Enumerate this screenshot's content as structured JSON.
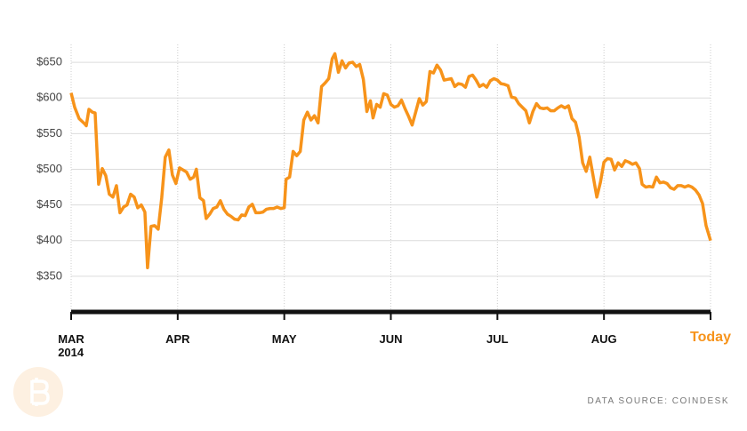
{
  "chart_data": {
    "type": "line",
    "source": "DATA SOURCE: COINDESK",
    "x": [
      0,
      0.033,
      0.075,
      0.125,
      0.142,
      0.167,
      0.2,
      0.225,
      0.258,
      0.292,
      0.325,
      0.358,
      0.392,
      0.425,
      0.458,
      0.492,
      0.525,
      0.558,
      0.592,
      0.625,
      0.658,
      0.692,
      0.717,
      0.75,
      0.783,
      0.817,
      0.85,
      0.883,
      0.917,
      0.95,
      0.983,
      1.017,
      1.05,
      1.083,
      1.117,
      1.15,
      1.175,
      1.208,
      1.242,
      1.267,
      1.3,
      1.333,
      1.367,
      1.4,
      1.433,
      1.467,
      1.5,
      1.533,
      1.567,
      1.6,
      1.633,
      1.667,
      1.7,
      1.733,
      1.767,
      1.8,
      1.833,
      1.867,
      1.9,
      1.933,
      1.967,
      2,
      2.017,
      2.05,
      2.083,
      2.117,
      2.15,
      2.183,
      2.217,
      2.25,
      2.283,
      2.317,
      2.35,
      2.383,
      2.417,
      2.45,
      2.475,
      2.508,
      2.542,
      2.575,
      2.608,
      2.642,
      2.675,
      2.708,
      2.742,
      2.775,
      2.808,
      2.833,
      2.867,
      2.9,
      2.933,
      2.967,
      3,
      3.033,
      3.067,
      3.1,
      3.133,
      3.167,
      3.2,
      3.233,
      3.267,
      3.3,
      3.333,
      3.367,
      3.4,
      3.433,
      3.467,
      3.5,
      3.533,
      3.567,
      3.6,
      3.633,
      3.667,
      3.7,
      3.733,
      3.767,
      3.8,
      3.833,
      3.867,
      3.9,
      3.933,
      3.967,
      4,
      4.033,
      4.067,
      4.1,
      4.133,
      4.167,
      4.2,
      4.233,
      4.267,
      4.3,
      4.333,
      4.367,
      4.4,
      4.433,
      4.467,
      4.5,
      4.533,
      4.567,
      4.6,
      4.633,
      4.667,
      4.7,
      4.733,
      4.767,
      4.8,
      4.833,
      4.867,
      4.9,
      4.933,
      4.967,
      5,
      5.033,
      5.067,
      5.1,
      5.133,
      5.167,
      5.2,
      5.233,
      5.267,
      5.3,
      5.333,
      5.358,
      5.392,
      5.425,
      5.458,
      5.492,
      5.525,
      5.558,
      5.592,
      5.625,
      5.658,
      5.692,
      5.725,
      5.758,
      5.792,
      5.825,
      5.858,
      5.892,
      5.925,
      5.958,
      6
    ],
    "series": [
      {
        "color": "#f7931a",
        "values": [
          607,
          587,
          571,
          564,
          561,
          584,
          580,
          579,
          479,
          501,
          491,
          465,
          461,
          477,
          439,
          447,
          450,
          465,
          461,
          446,
          450,
          440,
          362,
          420,
          421,
          416,
          460,
          517,
          527,
          492,
          480,
          502,
          499,
          496,
          486,
          489,
          500,
          460,
          456,
          431,
          437,
          445,
          447,
          456,
          444,
          437,
          434,
          430,
          429,
          436,
          435,
          447,
          451,
          439,
          439,
          440,
          444,
          445,
          445,
          447,
          445,
          446,
          486,
          489,
          525,
          519,
          525,
          569,
          580,
          569,
          575,
          565,
          616,
          621,
          627,
          655,
          662,
          636,
          652,
          642,
          649,
          650,
          644,
          647,
          626,
          581,
          596,
          572,
          591,
          587,
          606,
          604,
          591,
          587,
          589,
          597,
          585,
          574,
          562,
          580,
          599,
          590,
          595,
          637,
          635,
          646,
          639,
          625,
          626,
          627,
          616,
          620,
          619,
          615,
          630,
          632,
          625,
          616,
          619,
          615,
          624,
          627,
          625,
          620,
          619,
          617,
          601,
          600,
          592,
          587,
          582,
          565,
          581,
          592,
          586,
          585,
          586,
          582,
          582,
          586,
          589,
          586,
          589,
          571,
          566,
          545,
          509,
          497,
          517,
          489,
          461,
          482,
          510,
          515,
          514,
          499,
          509,
          504,
          512,
          510,
          507,
          509,
          501,
          479,
          475,
          476,
          475,
          489,
          481,
          482,
          480,
          474,
          472,
          477,
          477,
          475,
          477,
          475,
          471,
          464,
          452,
          421,
          400
        ]
      }
    ],
    "xlim": [
      0,
      6
    ],
    "xticks": [
      {
        "value": 0,
        "label": "MAR 2014"
      },
      {
        "value": 1,
        "label": "APR"
      },
      {
        "value": 2,
        "label": "MAY"
      },
      {
        "value": 3,
        "label": "JUN"
      },
      {
        "value": 4,
        "label": "JUL"
      },
      {
        "value": 5,
        "label": "AUG"
      },
      {
        "value": 6,
        "label": "Today"
      }
    ],
    "ylim": [
      300,
      675
    ],
    "yticks": [
      {
        "value": 350,
        "label": "$350"
      },
      {
        "value": 400,
        "label": "$400"
      },
      {
        "value": 450,
        "label": "$450"
      },
      {
        "value": 500,
        "label": "$500"
      },
      {
        "value": 550,
        "label": "$550"
      },
      {
        "value": 600,
        "label": "$600"
      },
      {
        "value": 650,
        "label": "$650"
      }
    ],
    "grid": true
  }
}
